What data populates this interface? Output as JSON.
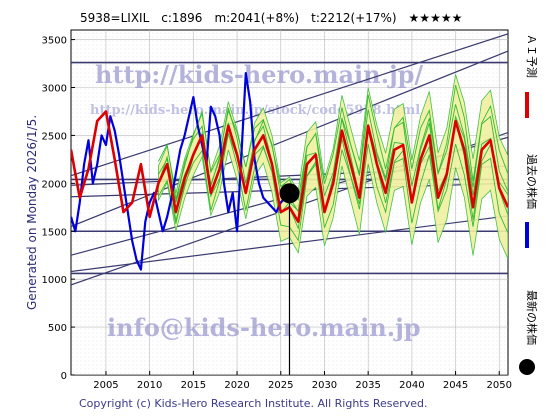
{
  "header": {
    "title": "5938=LIXIL　c:1896　m:2041(+8%)　t:2212(+17%)　★★★★★"
  },
  "side": {
    "generated": "Generated on Monday 2026/1/5."
  },
  "legend": [
    {
      "name": "ＡＩ予測",
      "color": "#dd0000",
      "marker": "line"
    },
    {
      "name": "過去の株価",
      "color": "#0000dd",
      "marker": "line"
    },
    {
      "name": "最新の株価",
      "color": "#000000",
      "marker": "dot"
    }
  ],
  "watermarks": {
    "url1": "http://kids-hero.main.jp/",
    "url2": "http://kids-hero.main.jp/stock/code5938.html",
    "mail": "info@kids-hero.main.jp"
  },
  "footer": {
    "copyright": "Copyright (c) Kids-Hero Research Institute. All Rights Reserved."
  },
  "colors": {
    "ai": "#dd0000",
    "past": "#0000dd",
    "band": "#33bb33",
    "band_fill": "#f0f0a0",
    "trend": "#3a3a70",
    "grid": "#bbbbbb"
  },
  "chart_data": {
    "type": "line",
    "xlim": [
      2001,
      2051
    ],
    "ylim": [
      0,
      3600
    ],
    "x_ticks": [
      2005,
      2010,
      2015,
      2020,
      2025,
      2030,
      2035,
      2040,
      2045,
      2050
    ],
    "y_ticks": [
      0,
      500,
      1000,
      1500,
      2000,
      2500,
      3000,
      3500
    ],
    "grid": true,
    "legend_position": "right",
    "latest": {
      "x": 2026.0,
      "y": 1896
    },
    "horizontal_lines": [
      1060,
      1500,
      2041,
      3260
    ],
    "trend_lines": [
      {
        "x": [
          2001,
          2051
        ],
        "y": [
          940,
          2530
        ]
      },
      {
        "x": [
          2001,
          2051
        ],
        "y": [
          1080,
          1660
        ]
      },
      {
        "x": [
          2001,
          2051
        ],
        "y": [
          2080,
          3560
        ]
      },
      {
        "x": [
          2001,
          2051
        ],
        "y": [
          1980,
          2180
        ]
      },
      {
        "x": [
          2001,
          2051
        ],
        "y": [
          1860,
          2000
        ]
      },
      {
        "x": [
          2001,
          2051
        ],
        "y": [
          1550,
          3380
        ]
      },
      {
        "x": [
          2001,
          2051
        ],
        "y": [
          1250,
          2480
        ]
      }
    ],
    "series": [
      {
        "name": "過去の株価",
        "x": [
          2001.0,
          2001.5,
          2002.0,
          2002.5,
          2003.0,
          2003.5,
          2004.0,
          2004.5,
          2005.0,
          2005.5,
          2006.0,
          2006.5,
          2007.0,
          2007.5,
          2008.0,
          2008.5,
          2009.0,
          2009.5,
          2010.0,
          2010.5,
          2011.0,
          2011.5,
          2012.0,
          2012.5,
          2013.0,
          2013.5,
          2014.0,
          2014.5,
          2015.0,
          2015.5,
          2016.0,
          2016.5,
          2017.0,
          2017.5,
          2018.0,
          2018.5,
          2019.0,
          2019.5,
          2020.0,
          2020.5,
          2021.0,
          2021.5,
          2022.0,
          2022.5,
          2023.0,
          2023.5,
          2024.0,
          2024.5,
          2025.0,
          2025.5,
          2026.0
        ],
        "y": [
          1650,
          1500,
          1800,
          2200,
          2450,
          2000,
          2200,
          2500,
          2400,
          2700,
          2550,
          2300,
          2000,
          1700,
          1400,
          1200,
          1100,
          1600,
          1800,
          1900,
          1700,
          1500,
          1650,
          1850,
          2100,
          2350,
          2500,
          2700,
          2900,
          2600,
          2400,
          2200,
          2800,
          2700,
          2500,
          2000,
          1700,
          1900,
          1500,
          2300,
          3150,
          2850,
          2250,
          2000,
          1850,
          1800,
          1750,
          1700,
          1800,
          1850,
          1896
        ]
      },
      {
        "name": "ＡＩ予測",
        "x": [
          2001,
          2002,
          2003,
          2004,
          2005,
          2006,
          2007,
          2008,
          2009,
          2010,
          2011,
          2012,
          2013,
          2014,
          2015,
          2016,
          2017,
          2018,
          2019,
          2020,
          2021,
          2022,
          2023,
          2024,
          2025,
          2026,
          2027,
          2028,
          2029,
          2030,
          2031,
          2032,
          2033,
          2034,
          2035,
          2036,
          2037,
          2038,
          2039,
          2040,
          2041,
          2042,
          2043,
          2044,
          2045,
          2046,
          2047,
          2048,
          2049,
          2050,
          2051
        ],
        "y": [
          2350,
          1850,
          2150,
          2650,
          2750,
          2250,
          1700,
          1800,
          2200,
          1650,
          2000,
          2200,
          1700,
          2050,
          2300,
          2500,
          1900,
          2150,
          2600,
          2300,
          1900,
          2350,
          2500,
          2200,
          1700,
          1750,
          1600,
          2200,
          2300,
          1700,
          2000,
          2550,
          2200,
          1850,
          2600,
          2200,
          1900,
          2350,
          2400,
          1800,
          2250,
          2500,
          1850,
          2100,
          2650,
          2350,
          1750,
          2350,
          2450,
          1950,
          1750
        ]
      }
    ]
  }
}
